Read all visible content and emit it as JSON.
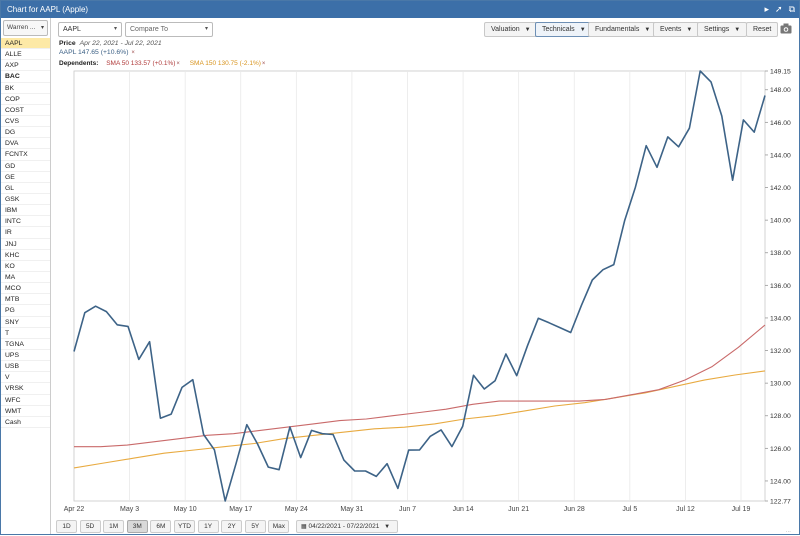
{
  "window": {
    "title": "Chart for AAPL (Apple)",
    "icons": [
      "arrow-right-icon",
      "pin-icon",
      "popout-icon"
    ]
  },
  "sidebar": {
    "list_select": "Warren ...",
    "tickers": [
      "AAPL",
      "ALLE",
      "AXP",
      "BAC",
      "BK",
      "COP",
      "COST",
      "CVS",
      "DG",
      "DVA",
      "FCNTX",
      "GD",
      "GE",
      "GL",
      "GSK",
      "IBM",
      "INTC",
      "IR",
      "JNJ",
      "KHC",
      "KO",
      "MA",
      "MCO",
      "MTB",
      "PG",
      "SNY",
      "T",
      "TGNA",
      "UPS",
      "USB",
      "V",
      "VRSK",
      "WFC",
      "WMT",
      "Cash"
    ],
    "active": "AAPL",
    "bold": [
      "BAC"
    ]
  },
  "toolbar": {
    "symbol_value": "AAPL",
    "compare_placeholder": "Compare To",
    "buttons": {
      "valuation": "Valuation",
      "technicals": "Technicals",
      "fundamentals": "Fundamentals",
      "events": "Events",
      "settings": "Settings",
      "reset": "Reset"
    },
    "icons": {
      "camera": "camera-icon"
    }
  },
  "info": {
    "price_label": "Price",
    "date_range": "Apr 22, 2021 - Jul 22, 2021",
    "series_line": "AAPL 147.65 (+10.6%)",
    "dependents_label": "Dependents:",
    "sma50": "SMA 50 133.57 (+0.1%)",
    "sma150": "SMA 150 130.75 (-2.1%)",
    "remove_glyph": "×"
  },
  "ranges": {
    "buttons": [
      "1D",
      "5D",
      "1M",
      "3M",
      "6M",
      "YTD",
      "1Y",
      "2Y",
      "5Y",
      "Max"
    ],
    "active": "3M",
    "date_range": "04/22/2021 - 07/22/2021"
  },
  "colors": {
    "titlebar": "#3c6fa8",
    "price": "#3d6387",
    "sma50": "#c96a6a",
    "sma150": "#e8aa40",
    "active_ticker": "#fde9a6"
  },
  "chart_data": {
    "type": "line",
    "xlabel": "",
    "ylabel": "",
    "x_tick_labels": [
      "Apr 22",
      "May 3",
      "May 10",
      "May 17",
      "May 24",
      "May 31",
      "Jun 7",
      "Jun 14",
      "Jun 21",
      "Jun 28",
      "Jul 5",
      "Jul 12",
      "Jul 19"
    ],
    "y_tick_labels": [
      "122.77",
      "124.00",
      "126.00",
      "128.00",
      "130.00",
      "132.00",
      "134.00",
      "136.00",
      "138.00",
      "140.00",
      "142.00",
      "144.00",
      "146.00",
      "148.00",
      "149.15"
    ],
    "ylim": [
      122.77,
      149.15
    ],
    "grid": "vertical",
    "series": [
      {
        "name": "AAPL",
        "values": [
          131.94,
          134.32,
          134.72,
          134.39,
          133.58,
          133.48,
          131.46,
          132.54,
          127.85,
          128.1,
          129.74,
          130.21,
          126.85,
          125.91,
          122.77,
          125.06,
          127.45,
          126.27,
          124.85,
          124.69,
          127.31,
          125.43,
          127.1,
          126.9,
          126.85,
          125.28,
          124.61,
          124.61,
          124.28,
          125.06,
          123.54,
          125.89,
          125.9,
          126.74,
          127.13,
          126.11,
          127.35,
          130.48,
          129.64,
          130.15,
          131.79,
          130.46,
          132.3,
          133.98,
          133.7,
          133.41,
          133.11,
          134.78,
          136.33,
          136.96,
          137.27,
          139.96,
          142.02,
          144.57,
          143.24,
          145.11,
          144.5,
          145.64,
          149.15,
          148.48,
          146.39,
          142.45,
          146.15,
          145.4,
          147.65
        ]
      },
      {
        "name": "SMA 50",
        "values": [
          126.1,
          126.1,
          126.2,
          126.4,
          126.6,
          126.8,
          126.9,
          127.1,
          127.3,
          127.5,
          127.7,
          127.8,
          128.0,
          128.2,
          128.4,
          128.7,
          128.9,
          128.9,
          128.9,
          128.9,
          129.0,
          129.3,
          129.6,
          130.2,
          131.0,
          132.2,
          133.57
        ]
      },
      {
        "name": "SMA 150",
        "values": [
          124.8,
          125.1,
          125.4,
          125.7,
          125.9,
          126.1,
          126.3,
          126.6,
          126.8,
          127.0,
          127.2,
          127.3,
          127.5,
          127.8,
          128.0,
          128.3,
          128.6,
          128.8,
          129.1,
          129.4,
          129.8,
          130.2,
          130.5,
          130.75
        ]
      }
    ]
  }
}
